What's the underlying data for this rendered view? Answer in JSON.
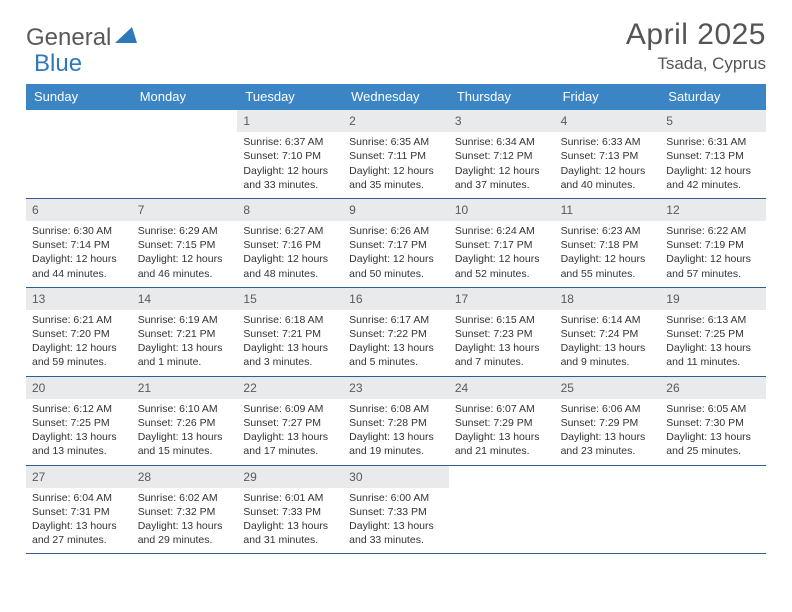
{
  "brand": {
    "name1": "General",
    "name2": "Blue"
  },
  "title": "April 2025",
  "location": "Tsada, Cyprus",
  "colors": {
    "header_bg": "#3b85c5",
    "header_text": "#ffffff",
    "week_border": "#2f5e8a",
    "daynum_bg": "#e9eaeb",
    "text": "#333333",
    "brand_gray": "#58595b",
    "brand_blue": "#2f78bb",
    "background": "#ffffff"
  },
  "fonts": {
    "body_pt": 10.5,
    "daynum_pt": 12,
    "header_pt": 13,
    "title_pt": 30,
    "location_pt": 17
  },
  "grid": {
    "columns": 7,
    "rows": 5,
    "col_labels": [
      "Sunday",
      "Monday",
      "Tuesday",
      "Wednesday",
      "Thursday",
      "Friday",
      "Saturday"
    ]
  },
  "weeks": [
    [
      null,
      null,
      {
        "n": "1",
        "sunrise": "Sunrise: 6:37 AM",
        "sunset": "Sunset: 7:10 PM",
        "daylight": "Daylight: 12 hours and 33 minutes."
      },
      {
        "n": "2",
        "sunrise": "Sunrise: 6:35 AM",
        "sunset": "Sunset: 7:11 PM",
        "daylight": "Daylight: 12 hours and 35 minutes."
      },
      {
        "n": "3",
        "sunrise": "Sunrise: 6:34 AM",
        "sunset": "Sunset: 7:12 PM",
        "daylight": "Daylight: 12 hours and 37 minutes."
      },
      {
        "n": "4",
        "sunrise": "Sunrise: 6:33 AM",
        "sunset": "Sunset: 7:13 PM",
        "daylight": "Daylight: 12 hours and 40 minutes."
      },
      {
        "n": "5",
        "sunrise": "Sunrise: 6:31 AM",
        "sunset": "Sunset: 7:13 PM",
        "daylight": "Daylight: 12 hours and 42 minutes."
      }
    ],
    [
      {
        "n": "6",
        "sunrise": "Sunrise: 6:30 AM",
        "sunset": "Sunset: 7:14 PM",
        "daylight": "Daylight: 12 hours and 44 minutes."
      },
      {
        "n": "7",
        "sunrise": "Sunrise: 6:29 AM",
        "sunset": "Sunset: 7:15 PM",
        "daylight": "Daylight: 12 hours and 46 minutes."
      },
      {
        "n": "8",
        "sunrise": "Sunrise: 6:27 AM",
        "sunset": "Sunset: 7:16 PM",
        "daylight": "Daylight: 12 hours and 48 minutes."
      },
      {
        "n": "9",
        "sunrise": "Sunrise: 6:26 AM",
        "sunset": "Sunset: 7:17 PM",
        "daylight": "Daylight: 12 hours and 50 minutes."
      },
      {
        "n": "10",
        "sunrise": "Sunrise: 6:24 AM",
        "sunset": "Sunset: 7:17 PM",
        "daylight": "Daylight: 12 hours and 52 minutes."
      },
      {
        "n": "11",
        "sunrise": "Sunrise: 6:23 AM",
        "sunset": "Sunset: 7:18 PM",
        "daylight": "Daylight: 12 hours and 55 minutes."
      },
      {
        "n": "12",
        "sunrise": "Sunrise: 6:22 AM",
        "sunset": "Sunset: 7:19 PM",
        "daylight": "Daylight: 12 hours and 57 minutes."
      }
    ],
    [
      {
        "n": "13",
        "sunrise": "Sunrise: 6:21 AM",
        "sunset": "Sunset: 7:20 PM",
        "daylight": "Daylight: 12 hours and 59 minutes."
      },
      {
        "n": "14",
        "sunrise": "Sunrise: 6:19 AM",
        "sunset": "Sunset: 7:21 PM",
        "daylight": "Daylight: 13 hours and 1 minute."
      },
      {
        "n": "15",
        "sunrise": "Sunrise: 6:18 AM",
        "sunset": "Sunset: 7:21 PM",
        "daylight": "Daylight: 13 hours and 3 minutes."
      },
      {
        "n": "16",
        "sunrise": "Sunrise: 6:17 AM",
        "sunset": "Sunset: 7:22 PM",
        "daylight": "Daylight: 13 hours and 5 minutes."
      },
      {
        "n": "17",
        "sunrise": "Sunrise: 6:15 AM",
        "sunset": "Sunset: 7:23 PM",
        "daylight": "Daylight: 13 hours and 7 minutes."
      },
      {
        "n": "18",
        "sunrise": "Sunrise: 6:14 AM",
        "sunset": "Sunset: 7:24 PM",
        "daylight": "Daylight: 13 hours and 9 minutes."
      },
      {
        "n": "19",
        "sunrise": "Sunrise: 6:13 AM",
        "sunset": "Sunset: 7:25 PM",
        "daylight": "Daylight: 13 hours and 11 minutes."
      }
    ],
    [
      {
        "n": "20",
        "sunrise": "Sunrise: 6:12 AM",
        "sunset": "Sunset: 7:25 PM",
        "daylight": "Daylight: 13 hours and 13 minutes."
      },
      {
        "n": "21",
        "sunrise": "Sunrise: 6:10 AM",
        "sunset": "Sunset: 7:26 PM",
        "daylight": "Daylight: 13 hours and 15 minutes."
      },
      {
        "n": "22",
        "sunrise": "Sunrise: 6:09 AM",
        "sunset": "Sunset: 7:27 PM",
        "daylight": "Daylight: 13 hours and 17 minutes."
      },
      {
        "n": "23",
        "sunrise": "Sunrise: 6:08 AM",
        "sunset": "Sunset: 7:28 PM",
        "daylight": "Daylight: 13 hours and 19 minutes."
      },
      {
        "n": "24",
        "sunrise": "Sunrise: 6:07 AM",
        "sunset": "Sunset: 7:29 PM",
        "daylight": "Daylight: 13 hours and 21 minutes."
      },
      {
        "n": "25",
        "sunrise": "Sunrise: 6:06 AM",
        "sunset": "Sunset: 7:29 PM",
        "daylight": "Daylight: 13 hours and 23 minutes."
      },
      {
        "n": "26",
        "sunrise": "Sunrise: 6:05 AM",
        "sunset": "Sunset: 7:30 PM",
        "daylight": "Daylight: 13 hours and 25 minutes."
      }
    ],
    [
      {
        "n": "27",
        "sunrise": "Sunrise: 6:04 AM",
        "sunset": "Sunset: 7:31 PM",
        "daylight": "Daylight: 13 hours and 27 minutes."
      },
      {
        "n": "28",
        "sunrise": "Sunrise: 6:02 AM",
        "sunset": "Sunset: 7:32 PM",
        "daylight": "Daylight: 13 hours and 29 minutes."
      },
      {
        "n": "29",
        "sunrise": "Sunrise: 6:01 AM",
        "sunset": "Sunset: 7:33 PM",
        "daylight": "Daylight: 13 hours and 31 minutes."
      },
      {
        "n": "30",
        "sunrise": "Sunrise: 6:00 AM",
        "sunset": "Sunset: 7:33 PM",
        "daylight": "Daylight: 13 hours and 33 minutes."
      },
      null,
      null,
      null
    ]
  ]
}
